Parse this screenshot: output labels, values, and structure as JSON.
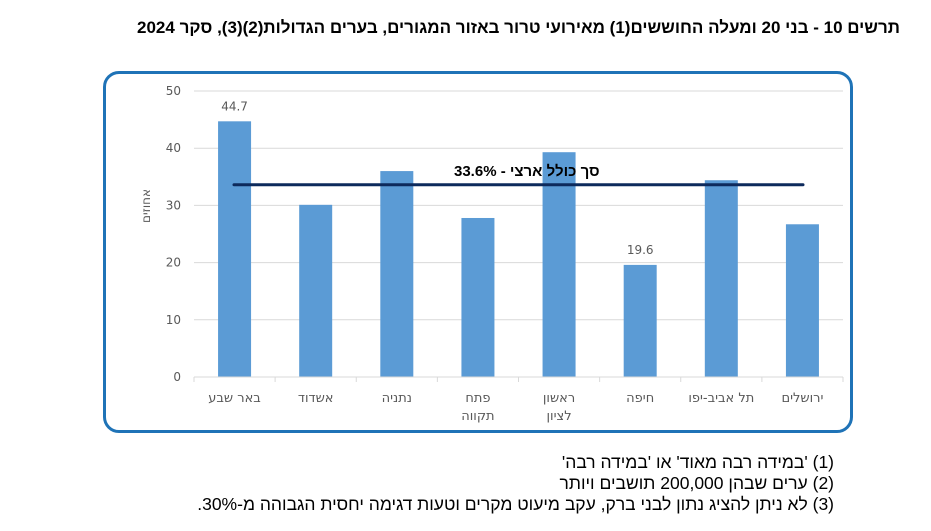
{
  "title": "תרשים 10 - בני 20 ומעלה החוששים(1) מאירועי טרור באזור המגורים, בערים הגדולות(2)(3), סקר 2024",
  "chart_data": {
    "type": "bar",
    "title": "תרשים 10 - בני 20 ומעלה החוששים(1) מאירועי טרור באזור המגורים, בערים הגדולות(2)(3), סקר 2024",
    "xlabel": "",
    "ylabel": "אחוזים",
    "ylim": [
      0,
      50
    ],
    "yticks": [
      "0",
      "10",
      "20",
      "30",
      "40",
      "50"
    ],
    "grid": true,
    "categories": [
      [
        "ירושלים"
      ],
      [
        "תל אביב-יפו"
      ],
      [
        "חיפה"
      ],
      [
        "ראשון",
        "לציון"
      ],
      [
        "פתח",
        "תקווה"
      ],
      [
        "נתניה"
      ],
      [
        "אשדוד"
      ],
      [
        "באר שבע"
      ]
    ],
    "values": [
      26.7,
      34.4,
      19.6,
      39.3,
      27.8,
      36.0,
      30.1,
      44.7
    ],
    "data_labels": [
      null,
      null,
      "19.6",
      null,
      null,
      null,
      null,
      "44.7"
    ],
    "reference_line": {
      "value": 33.6,
      "label": "סך כולל ארצי - 33.6%"
    },
    "colors": {
      "bar": "#5b9bd5",
      "reference_line": "#0d2a5c",
      "frame": "#1f73b7",
      "grid": "#d9d9d9"
    }
  },
  "notes": [
    "(1) 'במידה רבה מאוד' או 'במידה רבה'",
    "(2) ערים שבהן 200,000 תושבים ויותר",
    "(3) לא ניתן להציג נתון לבני ברק, עקב מיעוט מקרים וטעות דגימה יחסית הגבוהה מ-30%."
  ]
}
